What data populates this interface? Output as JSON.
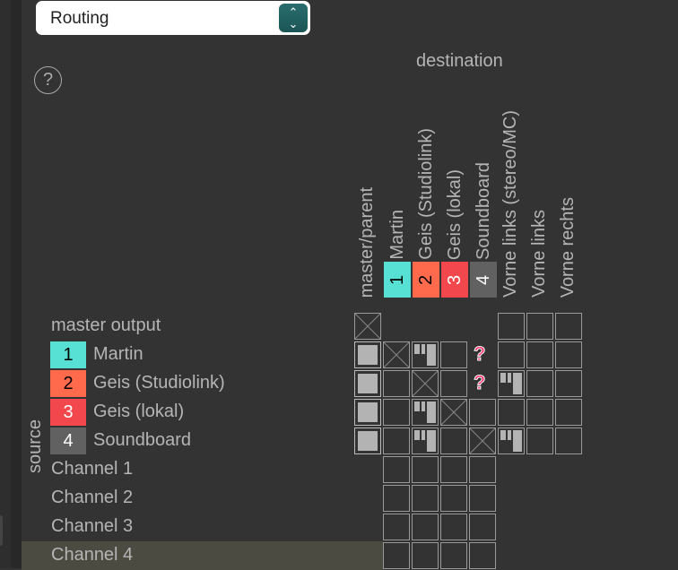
{
  "mode_select": {
    "value": "Routing"
  },
  "help_label": "?",
  "destination_title": "destination",
  "source_title": "source",
  "columns": [
    {
      "label": "master/parent"
    },
    {
      "label": "Martin",
      "badge": "1",
      "color": "#57e0d4",
      "text": "#000"
    },
    {
      "label": "Geis (Studiolink)",
      "badge": "2",
      "color": "#ff6a4d",
      "text": "#000"
    },
    {
      "label": "Geis (lokal)",
      "badge": "3",
      "color": "#f2474d",
      "text": "#fff"
    },
    {
      "label": "Soundboard",
      "badge": "4",
      "color": "#616161",
      "text": "#fff"
    },
    {
      "label": "Vorne links (stereo/MC)"
    },
    {
      "label": "Vorne links"
    },
    {
      "label": "Vorne rechts"
    }
  ],
  "rows": [
    {
      "label": "master output",
      "cells": [
        "x",
        "none",
        "none",
        "none",
        "none",
        "empty",
        "empty",
        "empty"
      ]
    },
    {
      "label": "Martin",
      "badge": "1",
      "color": "#57e0d4",
      "text": "#000",
      "cells": [
        "full",
        "x",
        "partial",
        "empty",
        "unknown",
        "empty",
        "empty",
        "empty"
      ]
    },
    {
      "label": "Geis (Studiolink)",
      "badge": "2",
      "color": "#ff6a4d",
      "text": "#000",
      "cells": [
        "full",
        "empty",
        "x",
        "empty",
        "unknown",
        "partial",
        "empty",
        "empty"
      ]
    },
    {
      "label": "Geis (lokal)",
      "badge": "3",
      "color": "#f2474d",
      "text": "#fff",
      "cells": [
        "full",
        "empty",
        "partial",
        "x",
        "empty",
        "empty",
        "empty",
        "empty"
      ]
    },
    {
      "label": "Soundboard",
      "badge": "4",
      "color": "#616161",
      "text": "#fff",
      "cells": [
        "full",
        "empty",
        "partial",
        "empty",
        "x",
        "partial",
        "empty",
        "empty"
      ]
    },
    {
      "label": "Channel 1",
      "cells": [
        "none",
        "empty",
        "empty",
        "empty",
        "empty",
        "none",
        "none",
        "none"
      ]
    },
    {
      "label": "Channel 2",
      "cells": [
        "none",
        "empty",
        "empty",
        "empty",
        "empty",
        "none",
        "none",
        "none"
      ]
    },
    {
      "label": "Channel 3",
      "cells": [
        "none",
        "empty",
        "empty",
        "empty",
        "empty",
        "none",
        "none",
        "none"
      ]
    },
    {
      "label": "Channel 4",
      "selected": true,
      "cells": [
        "none",
        "empty",
        "empty",
        "empty",
        "empty",
        "none",
        "none",
        "none"
      ]
    }
  ],
  "unknown_glyph": "?"
}
